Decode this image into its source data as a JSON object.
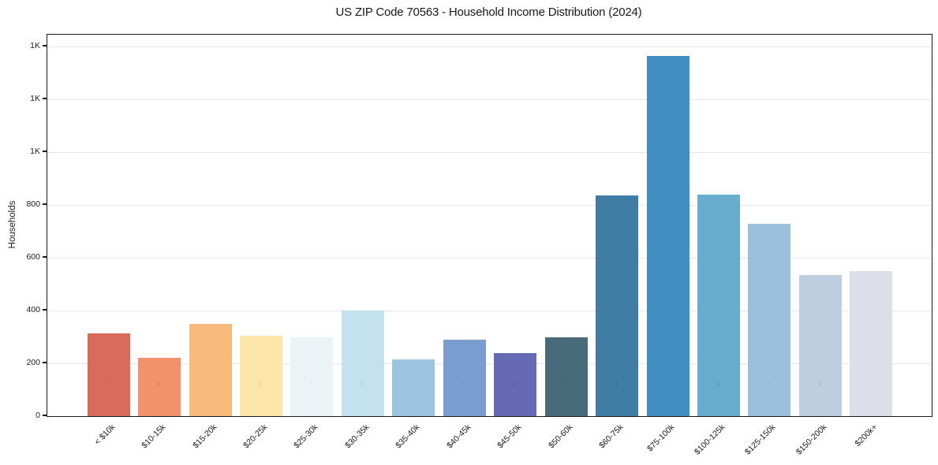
{
  "title": "US ZIP Code 70563 - Household Income Distribution (2024)",
  "chart_data": {
    "type": "bar",
    "title": "US ZIP Code 70563 - Household Income Distribution (2024)",
    "xlabel": "",
    "ylabel": "Households",
    "ylim": [
      0,
      1445
    ],
    "grid": "horizontal",
    "legend": "none",
    "categories": [
      "< $10k",
      "$10-15k",
      "$15-20k",
      "$20-25k",
      "$25-30k",
      "$30-35k",
      "$35-40k",
      "$40-45k",
      "$45-50k",
      "$50-60k",
      "$60-75k",
      "$75-100k",
      "$100-125k",
      "$125-150k",
      "$150-200k",
      "$200k+"
    ],
    "values": [
      315,
      220,
      350,
      305,
      300,
      400,
      215,
      290,
      240,
      300,
      835,
      1365,
      840,
      730,
      535,
      550
    ],
    "bar_colors": [
      "#d65f50",
      "#f18a62",
      "#f9b672",
      "#fce3a2",
      "#e9f2f5",
      "#c0dfee",
      "#95c1dd",
      "#6e96ca",
      "#5a5fae",
      "#3a5f70",
      "#32739d",
      "#3387bd",
      "#5ca6cb",
      "#93bbda",
      "#b7cade",
      "#d9dbe7"
    ],
    "y_ticks": [
      {
        "value": 0,
        "label": "0"
      },
      {
        "value": 200,
        "label": "200"
      },
      {
        "value": 400,
        "label": "400"
      },
      {
        "value": 600,
        "label": "600"
      },
      {
        "value": 800,
        "label": "800"
      },
      {
        "value": 1000,
        "label": "1K"
      },
      {
        "value": 1200,
        "label": "1K"
      },
      {
        "value": 1400,
        "label": "1K"
      }
    ]
  },
  "colors": {
    "background": "#ffffff",
    "spine": "#1a1a1a",
    "grid": "#e7e7e7",
    "text": "#1a1a1a"
  }
}
